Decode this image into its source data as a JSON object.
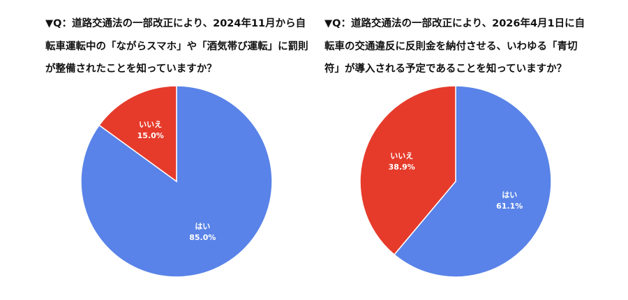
{
  "colors": {
    "yes": "#5983E8",
    "no": "#E63B2B"
  },
  "chart_data": [
    {
      "type": "pie",
      "title": "▼Q：道路交通法の一部改正により、2024年11月から自転車運転中の「ながらスマホ」や「酒気帯び運転」に罰則が整備されたことを知っていますか？",
      "slices": [
        {
          "label": "はい",
          "value": 85.0,
          "display": "85.0%"
        },
        {
          "label": "いいえ",
          "value": 15.0,
          "display": "15.0%"
        }
      ]
    },
    {
      "type": "pie",
      "title": "▼Q：道路交通法の一部改正により、2026年4月1日に自転車の交通違反に反則金を納付させる、いわゆる「青切符」が導入される予定であることを知っていますか？",
      "slices": [
        {
          "label": "はい",
          "value": 61.1,
          "display": "61.1%"
        },
        {
          "label": "いいえ",
          "value": 38.9,
          "display": "38.9%"
        }
      ]
    }
  ]
}
